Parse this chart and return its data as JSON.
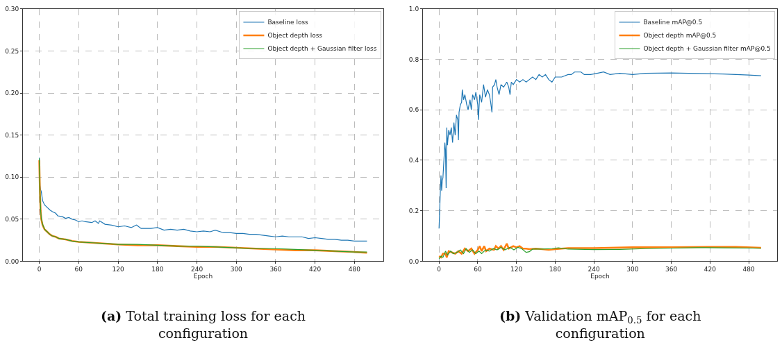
{
  "chart_data": [
    {
      "type": "line",
      "xlabel": "Epoch",
      "xlim": [
        -24.95,
        523.95
      ],
      "xticks": [
        0,
        60,
        120,
        180,
        240,
        300,
        360,
        420,
        480
      ],
      "ylim": [
        0,
        0.3
      ],
      "yticks": [
        {
          "value": 0,
          "label": "0.00"
        },
        0.05,
        {
          "value": 0.1,
          "label": "0.10"
        },
        0.15,
        {
          "value": 0.2,
          "label": "0.20"
        },
        0.25,
        {
          "value": 0.3,
          "label": "0.30"
        }
      ],
      "grid": true,
      "legend": "top right",
      "line_style": "solid",
      "annotations": [
        "(a) Total training loss for each configuration"
      ],
      "series": [
        {
          "name": "Baseline loss",
          "color": "#1f77b4",
          "x": [
            0,
            1,
            2,
            3,
            5,
            8,
            12,
            16,
            20,
            25,
            28,
            35,
            40,
            45,
            50,
            55,
            60,
            65,
            70,
            80,
            85,
            90,
            92,
            100,
            110,
            120,
            130,
            140,
            148,
            155,
            170,
            180,
            190,
            200,
            210,
            220,
            230,
            240,
            250,
            260,
            268,
            280,
            290,
            300,
            310,
            320,
            330,
            340,
            350,
            360,
            370,
            380,
            400,
            410,
            420,
            430,
            440,
            450,
            460,
            470,
            480,
            490,
            499
          ],
          "values": [
            0.123,
            0.09,
            0.085,
            0.083,
            0.072,
            0.067,
            0.064,
            0.061,
            0.059,
            0.057,
            0.054,
            0.053,
            0.051,
            0.052,
            0.05,
            0.049,
            0.047,
            0.048,
            0.047,
            0.046,
            0.048,
            0.045,
            0.048,
            0.044,
            0.043,
            0.041,
            0.042,
            0.04,
            0.043,
            0.039,
            0.039,
            0.04,
            0.037,
            0.038,
            0.037,
            0.038,
            0.036,
            0.035,
            0.036,
            0.035,
            0.037,
            0.034,
            0.034,
            0.033,
            0.033,
            0.032,
            0.032,
            0.031,
            0.03,
            0.029,
            0.03,
            0.029,
            0.029,
            0.027,
            0.028,
            0.027,
            0.026,
            0.026,
            0.025,
            0.025,
            0.024,
            0.024,
            0.024
          ]
        },
        {
          "name": "Object depth loss",
          "color": "#ff7f0e",
          "x": [
            0,
            1,
            2,
            3,
            5,
            8,
            12,
            16,
            20,
            25,
            30,
            40,
            50,
            60,
            80,
            100,
            120,
            150,
            180,
            210,
            240,
            270,
            300,
            330,
            360,
            390,
            420,
            450,
            480,
            499
          ],
          "values": [
            0.12,
            0.08,
            0.06,
            0.05,
            0.043,
            0.038,
            0.035,
            0.032,
            0.03,
            0.029,
            0.027,
            0.026,
            0.024,
            0.023,
            0.022,
            0.021,
            0.02,
            0.019,
            0.019,
            0.018,
            0.017,
            0.017,
            0.016,
            0.015,
            0.014,
            0.013,
            0.013,
            0.012,
            0.011,
            0.01
          ]
        },
        {
          "name": "Object depth + Gaussian filter loss",
          "color": "#2ca02c",
          "x": [
            0,
            1,
            2,
            3,
            5,
            8,
            12,
            16,
            20,
            25,
            30,
            40,
            50,
            60,
            80,
            100,
            120,
            150,
            180,
            210,
            240,
            270,
            300,
            330,
            360,
            390,
            420,
            450,
            480,
            499
          ],
          "values": [
            0.122,
            0.082,
            0.061,
            0.051,
            0.044,
            0.038,
            0.035,
            0.032,
            0.03,
            0.029,
            0.027,
            0.026,
            0.024,
            0.023,
            0.022,
            0.021,
            0.02,
            0.02,
            0.019,
            0.018,
            0.018,
            0.017,
            0.016,
            0.015,
            0.015,
            0.014,
            0.013,
            0.012,
            0.011,
            0.011
          ]
        }
      ]
    },
    {
      "type": "line",
      "xlabel": "Epoch",
      "xlim": [
        -24.95,
        523.95
      ],
      "xticks": [
        0,
        60,
        120,
        180,
        240,
        300,
        360,
        420,
        480
      ],
      "ylim": [
        0,
        1.0
      ],
      "yticks": [
        {
          "value": 0,
          "label": "0.0"
        },
        0.2,
        0.4,
        0.6,
        0.8,
        {
          "value": 1,
          "label": "1.0"
        }
      ],
      "grid": true,
      "legend": "top right",
      "line_style": "solid",
      "annotations": [
        "(b) Validation mAP$_{0.5}$ for each configuration"
      ],
      "series": [
        {
          "name": "Baseline mAP@0.5",
          "color": "#1f77b4",
          "x": [
            0,
            1,
            2,
            3,
            4,
            5,
            6,
            8,
            9,
            10,
            11,
            12,
            13,
            15,
            17,
            19,
            21,
            23,
            25,
            27,
            29,
            30,
            31,
            33,
            35,
            36,
            38,
            40,
            43,
            45,
            48,
            50,
            52,
            55,
            57,
            60,
            61,
            63,
            66,
            69,
            72,
            75,
            78,
            80,
            82,
            83,
            86,
            88,
            90,
            93,
            96,
            100,
            105,
            108,
            110,
            112,
            115,
            120,
            125,
            130,
            135,
            140,
            145,
            150,
            155,
            160,
            165,
            170,
            175,
            180,
            190,
            200,
            205,
            210,
            220,
            225,
            235,
            245,
            255,
            265,
            280,
            300,
            320,
            360,
            400,
            440,
            480,
            499
          ],
          "values": [
            0.13,
            0.2,
            0.28,
            0.34,
            0.28,
            0.32,
            0.33,
            0.42,
            0.47,
            0.44,
            0.29,
            0.53,
            0.46,
            0.52,
            0.5,
            0.53,
            0.47,
            0.55,
            0.5,
            0.58,
            0.56,
            0.48,
            0.59,
            0.62,
            0.63,
            0.68,
            0.64,
            0.66,
            0.62,
            0.6,
            0.64,
            0.6,
            0.66,
            0.64,
            0.67,
            0.62,
            0.56,
            0.66,
            0.63,
            0.7,
            0.65,
            0.68,
            0.66,
            0.63,
            0.59,
            0.69,
            0.7,
            0.72,
            0.69,
            0.66,
            0.7,
            0.69,
            0.71,
            0.69,
            0.66,
            0.71,
            0.7,
            0.72,
            0.71,
            0.72,
            0.71,
            0.72,
            0.73,
            0.72,
            0.74,
            0.73,
            0.74,
            0.72,
            0.71,
            0.73,
            0.73,
            0.74,
            0.74,
            0.75,
            0.75,
            0.74,
            0.74,
            0.745,
            0.75,
            0.74,
            0.745,
            0.74,
            0.745,
            0.746,
            0.744,
            0.742,
            0.738,
            0.735
          ]
        },
        {
          "name": "Object depth mAP@0.5",
          "color": "#ff7f0e",
          "x": [
            0,
            3,
            6,
            10,
            12,
            15,
            20,
            25,
            30,
            35,
            40,
            45,
            50,
            55,
            60,
            63,
            66,
            70,
            73,
            78,
            85,
            88,
            92,
            96,
            100,
            105,
            108,
            115,
            120,
            125,
            130,
            135,
            140,
            150,
            160,
            170,
            180,
            200,
            240,
            300,
            360,
            420,
            460,
            499
          ],
          "values": [
            0.02,
            0.015,
            0.03,
            0.03,
            0.015,
            0.04,
            0.035,
            0.03,
            0.04,
            0.03,
            0.05,
            0.04,
            0.05,
            0.03,
            0.045,
            0.06,
            0.04,
            0.06,
            0.04,
            0.05,
            0.045,
            0.06,
            0.05,
            0.06,
            0.045,
            0.07,
            0.05,
            0.06,
            0.055,
            0.06,
            0.05,
            0.05,
            0.048,
            0.05,
            0.048,
            0.045,
            0.048,
            0.052,
            0.052,
            0.055,
            0.055,
            0.057,
            0.057,
            0.053
          ]
        },
        {
          "name": "Object depth + Gaussian filter mAP@0.5",
          "color": "#2ca02c",
          "x": [
            0,
            3,
            6,
            10,
            13,
            18,
            22,
            28,
            33,
            38,
            42,
            47,
            52,
            57,
            62,
            66,
            72,
            78,
            84,
            90,
            96,
            102,
            110,
            116,
            122,
            128,
            135,
            140,
            145,
            160,
            175,
            185,
            200,
            240,
            280,
            320,
            360,
            400,
            440,
            499
          ],
          "values": [
            0.01,
            0.02,
            0.015,
            0.04,
            0.025,
            0.04,
            0.03,
            0.035,
            0.045,
            0.03,
            0.05,
            0.035,
            0.045,
            0.03,
            0.04,
            0.03,
            0.045,
            0.04,
            0.05,
            0.045,
            0.055,
            0.045,
            0.055,
            0.045,
            0.055,
            0.05,
            0.035,
            0.038,
            0.048,
            0.048,
            0.05,
            0.053,
            0.048,
            0.046,
            0.047,
            0.05,
            0.052,
            0.054,
            0.053,
            0.052
          ]
        }
      ]
    }
  ]
}
